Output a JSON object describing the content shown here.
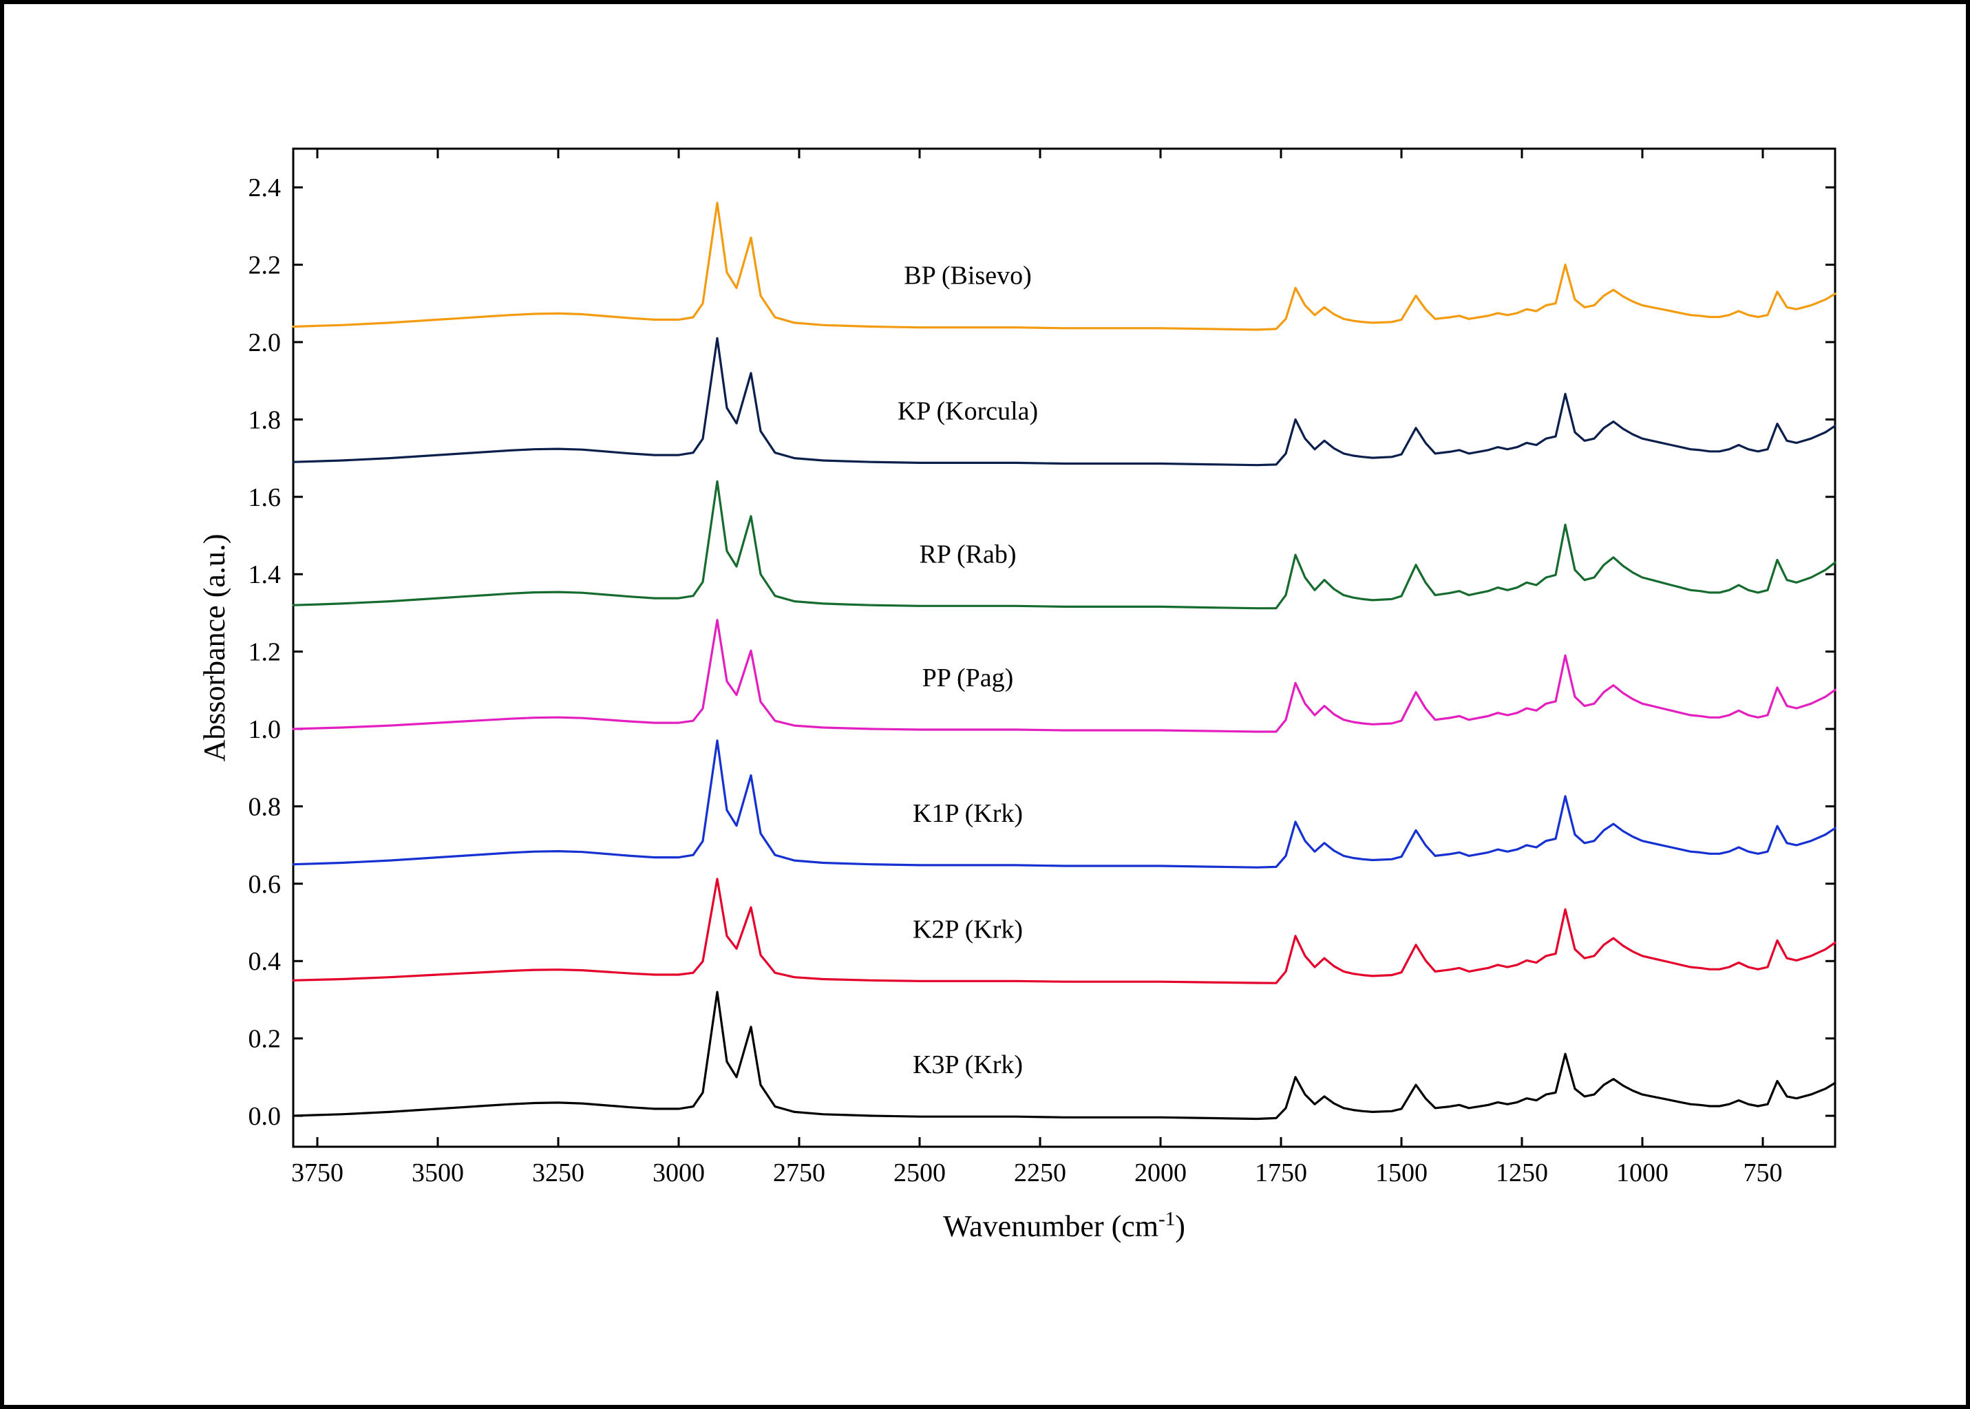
{
  "chart": {
    "type": "line-stacked-offset",
    "background_color": "#ffffff",
    "frame_color": "#000000",
    "frame_stroke_width": 3,
    "axis_stroke_width": 3,
    "xlabel": "Wavenumber (cm",
    "xlabel_super": "-1",
    "xlabel_close": ")",
    "ylabel": "Abssorbance (a.u.)",
    "label_fontsize": 44,
    "tick_fontsize": 38,
    "series_label_fontsize": 38,
    "x_reversed": true,
    "xlim": [
      600,
      3800
    ],
    "xticks": [
      3750,
      3500,
      3250,
      3000,
      2750,
      2500,
      2250,
      2000,
      1750,
      1500,
      1250,
      1000,
      750
    ],
    "ylim": [
      -0.08,
      2.5
    ],
    "yticks": [
      0.0,
      0.2,
      0.4,
      0.6,
      0.8,
      1.0,
      1.2,
      1.4,
      1.6,
      1.8,
      2.0,
      2.2,
      2.4
    ],
    "tick_length_major": 14,
    "line_width": 3.2,
    "label_x_wavenumber": 2400,
    "label_y_offset_from_baseline": 0.11,
    "pattern_x": [
      3800,
      3750,
      3700,
      3600,
      3500,
      3450,
      3400,
      3350,
      3300,
      3250,
      3200,
      3100,
      3050,
      3000,
      2970,
      2950,
      2920,
      2900,
      2880,
      2850,
      2830,
      2800,
      2760,
      2700,
      2650,
      2600,
      2500,
      2450,
      2400,
      2350,
      2300,
      2200,
      2100,
      2000,
      1900,
      1800,
      1760,
      1740,
      1720,
      1700,
      1680,
      1660,
      1640,
      1620,
      1600,
      1580,
      1560,
      1520,
      1500,
      1470,
      1450,
      1430,
      1400,
      1380,
      1360,
      1340,
      1320,
      1300,
      1280,
      1260,
      1240,
      1220,
      1200,
      1180,
      1160,
      1140,
      1120,
      1100,
      1080,
      1060,
      1040,
      1020,
      1000,
      980,
      960,
      940,
      920,
      900,
      880,
      860,
      840,
      820,
      800,
      780,
      760,
      740,
      720,
      700,
      680,
      650,
      620,
      600
    ],
    "pattern_y": [
      0.0,
      0.002,
      0.004,
      0.01,
      0.018,
      0.022,
      0.026,
      0.03,
      0.033,
      0.034,
      0.032,
      0.022,
      0.018,
      0.018,
      0.024,
      0.06,
      0.32,
      0.14,
      0.1,
      0.23,
      0.08,
      0.024,
      0.01,
      0.004,
      0.002,
      0.0,
      -0.002,
      -0.002,
      -0.002,
      -0.002,
      -0.002,
      -0.004,
      -0.004,
      -0.004,
      -0.006,
      -0.008,
      -0.006,
      0.02,
      0.1,
      0.055,
      0.03,
      0.05,
      0.032,
      0.02,
      0.015,
      0.012,
      0.01,
      0.012,
      0.018,
      0.08,
      0.045,
      0.02,
      0.024,
      0.028,
      0.02,
      0.024,
      0.028,
      0.035,
      0.03,
      0.035,
      0.045,
      0.04,
      0.055,
      0.06,
      0.16,
      0.07,
      0.05,
      0.055,
      0.08,
      0.095,
      0.078,
      0.065,
      0.055,
      0.05,
      0.045,
      0.04,
      0.035,
      0.03,
      0.028,
      0.025,
      0.025,
      0.03,
      0.04,
      0.03,
      0.025,
      0.03,
      0.09,
      0.05,
      0.045,
      0.055,
      0.07,
      0.085
    ],
    "series": [
      {
        "id": "BP",
        "label": "BP (Bisevo)",
        "color": "#f39c12",
        "baseline": 2.04,
        "scale": 1.0,
        "extra_fingerprint": 0.0
      },
      {
        "id": "KP",
        "label": "KP (Korcula)",
        "color": "#0b1f4d",
        "baseline": 1.69,
        "scale": 1.0,
        "extra_fingerprint": 0.1
      },
      {
        "id": "RP",
        "label": "RP (Rab)",
        "color": "#166b2f",
        "baseline": 1.32,
        "scale": 1.0,
        "extra_fingerprint": 0.3
      },
      {
        "id": "PP",
        "label": "PP (Pag)",
        "color": "#e31fc0",
        "baseline": 1.0,
        "scale": 0.88,
        "extra_fingerprint": 0.35
      },
      {
        "id": "K1P",
        "label": "K1P (Krk)",
        "color": "#1531d1",
        "baseline": 0.65,
        "scale": 1.0,
        "extra_fingerprint": 0.1
      },
      {
        "id": "K2P",
        "label": "K2P (Krk)",
        "color": "#e4002b",
        "baseline": 0.35,
        "scale": 0.82,
        "extra_fingerprint": 0.4
      },
      {
        "id": "K3P",
        "label": "K3P (Krk)",
        "color": "#000000",
        "baseline": 0.0,
        "scale": 1.0,
        "extra_fingerprint": 0.0
      }
    ]
  }
}
